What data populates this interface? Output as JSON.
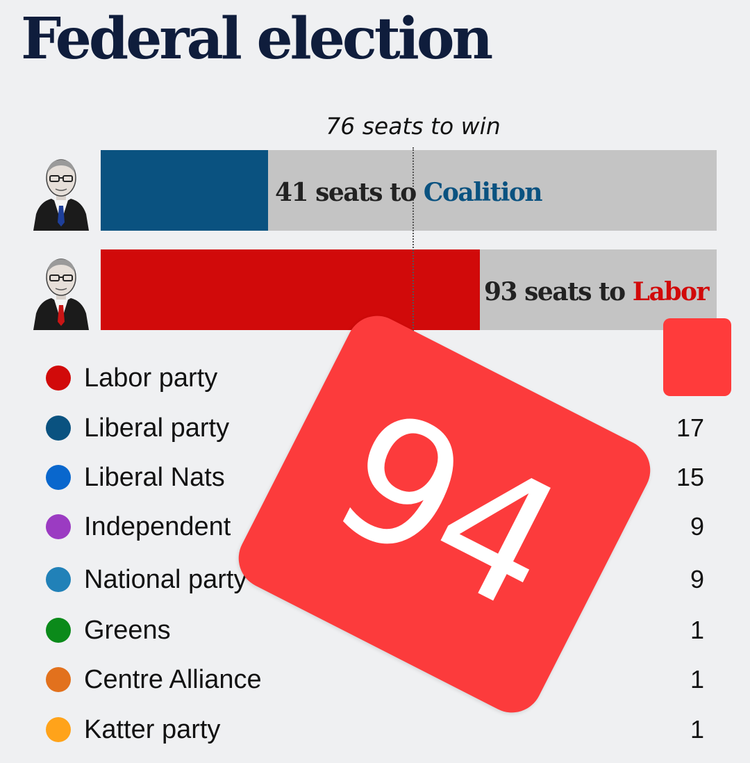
{
  "title": "Federal election",
  "threshold_label": "76 seats to win",
  "colors": {
    "coalition": "#0a5280",
    "labor": "#d10a0a",
    "track": "#c4c4c4",
    "sticker": "#fc3b3c"
  },
  "chart_data": [
    {
      "type": "bar",
      "orientation": "horizontal",
      "xlim": [
        0,
        151
      ],
      "threshold": 76,
      "bars": [
        {
          "value": 41,
          "color": "#0a5280",
          "caption_prefix": "41 seats to",
          "caption_party": "Coalition",
          "portrait": "leader-portrait-icon"
        },
        {
          "value": 93,
          "color": "#d10a0a",
          "caption_prefix": "93 seats to",
          "caption_party": "Labor",
          "portrait": "leader-portrait-icon"
        }
      ]
    },
    {
      "type": "table",
      "columns": [
        "party",
        "seats"
      ],
      "rows": [
        {
          "party": "Labor party",
          "seats": "",
          "color": "#d10a0a"
        },
        {
          "party": "Liberal party",
          "seats": "17",
          "color": "#0a5280"
        },
        {
          "party": "Liberal Nats",
          "seats": "15",
          "color": "#0967cd"
        },
        {
          "party": "Independent",
          "seats": "9",
          "color": "#9b3bc2"
        },
        {
          "party": "National party",
          "seats": "9",
          "color": "#2181b8"
        },
        {
          "party": "Greens",
          "seats": "1",
          "color": "#0b8a1a"
        },
        {
          "party": "Centre Alliance",
          "seats": "1",
          "color": "#e2711d"
        },
        {
          "party": "Katter party",
          "seats": "1",
          "color": "#ffa31a"
        }
      ]
    }
  ],
  "overlay": {
    "number": "94",
    "color": "#fc3b3c"
  }
}
